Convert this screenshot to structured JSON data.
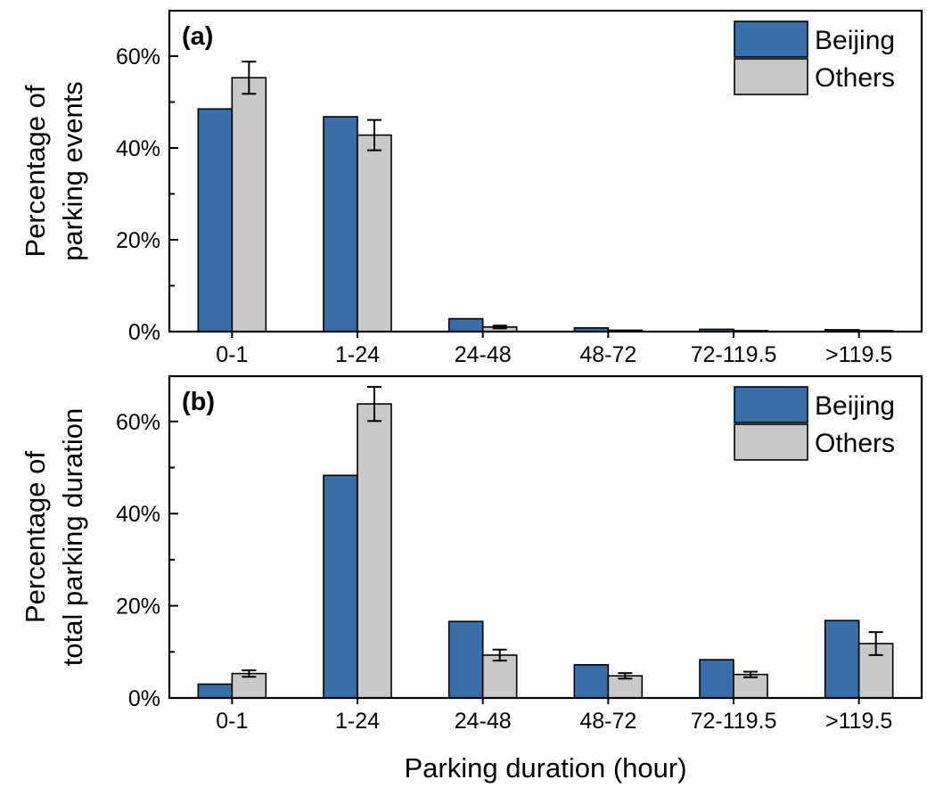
{
  "figure": {
    "xlabel": "Parking duration (hour)"
  },
  "chart_data": [
    {
      "type": "bar",
      "panel_label": "(a)",
      "ylabel_lines": [
        "Percentage of",
        "parking events"
      ],
      "categories": [
        "0-1",
        "1-24",
        "24-48",
        "48-72",
        "72-119.5",
        ">119.5"
      ],
      "yticks": [
        "0%",
        "20%",
        "40%",
        "60%"
      ],
      "ylim": [
        0,
        60
      ],
      "series": [
        {
          "name": "Beijing",
          "color": "#3a6eab",
          "values": [
            48.5,
            46.8,
            2.8,
            0.8,
            0.5,
            0.4
          ]
        },
        {
          "name": "Others",
          "color": "#c8c8c8",
          "values": [
            55.3,
            42.8,
            1.0,
            0.3,
            0.2,
            0.2
          ],
          "error": [
            3.5,
            3.3,
            0.3,
            0.0,
            0.0,
            0.0
          ]
        }
      ],
      "legend_position": "top-right",
      "grid": false
    },
    {
      "type": "bar",
      "panel_label": "(b)",
      "ylabel_lines": [
        "Percentage of",
        "total parking duration"
      ],
      "categories": [
        "0-1",
        "1-24",
        "24-48",
        "48-72",
        "72-119.5",
        ">119.5"
      ],
      "yticks": [
        "0%",
        "20%",
        "40%",
        "60%"
      ],
      "ylim": [
        0,
        60
      ],
      "series": [
        {
          "name": "Beijing",
          "color": "#3a6eab",
          "values": [
            3.0,
            48.3,
            16.6,
            7.2,
            8.3,
            16.8
          ]
        },
        {
          "name": "Others",
          "color": "#c8c8c8",
          "values": [
            5.3,
            63.8,
            9.3,
            4.8,
            5.1,
            11.8
          ],
          "error": [
            0.7,
            3.7,
            1.2,
            0.6,
            0.6,
            2.5
          ]
        }
      ],
      "legend_position": "top-right",
      "grid": false
    }
  ]
}
